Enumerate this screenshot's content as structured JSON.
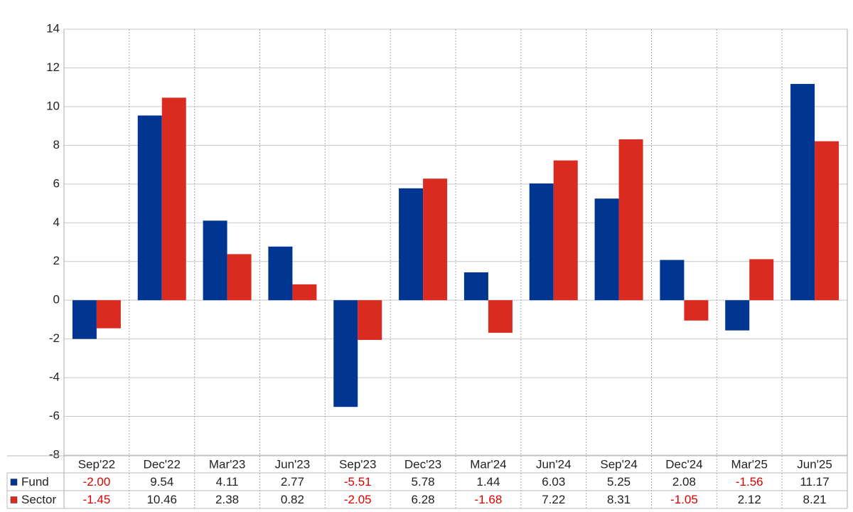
{
  "chart_data": {
    "type": "bar",
    "categories": [
      "Sep'22",
      "Dec'22",
      "Mar'23",
      "Jun'23",
      "Sep'23",
      "Dec'23",
      "Mar'24",
      "Jun'24",
      "Sep'24",
      "Dec'24",
      "Mar'25",
      "Jun'25"
    ],
    "series": [
      {
        "name": "Fund",
        "color": "#003591",
        "values": [
          -2.0,
          9.54,
          4.11,
          2.77,
          -5.51,
          5.78,
          1.44,
          6.03,
          5.25,
          2.08,
          -1.56,
          11.17
        ],
        "value_labels": [
          "-2.00",
          "9.54",
          "4.11",
          "2.77",
          "-5.51",
          "5.78",
          "1.44",
          "6.03",
          "5.25",
          "2.08",
          "-1.56",
          "11.17"
        ]
      },
      {
        "name": "Sector",
        "color": "#d92b1f",
        "values": [
          -1.45,
          10.46,
          2.38,
          0.82,
          -2.05,
          6.28,
          -1.68,
          7.22,
          8.31,
          -1.05,
          2.12,
          8.21
        ],
        "value_labels": [
          "-1.45",
          "10.46",
          "2.38",
          "0.82",
          "-2.05",
          "6.28",
          "-1.68",
          "7.22",
          "8.31",
          "-1.05",
          "2.12",
          "8.21"
        ]
      }
    ],
    "ylim": [
      -8,
      14
    ],
    "yticks": [
      -8,
      -6,
      -4,
      -2,
      0,
      2,
      4,
      6,
      8,
      10,
      12,
      14
    ],
    "grid": true
  }
}
